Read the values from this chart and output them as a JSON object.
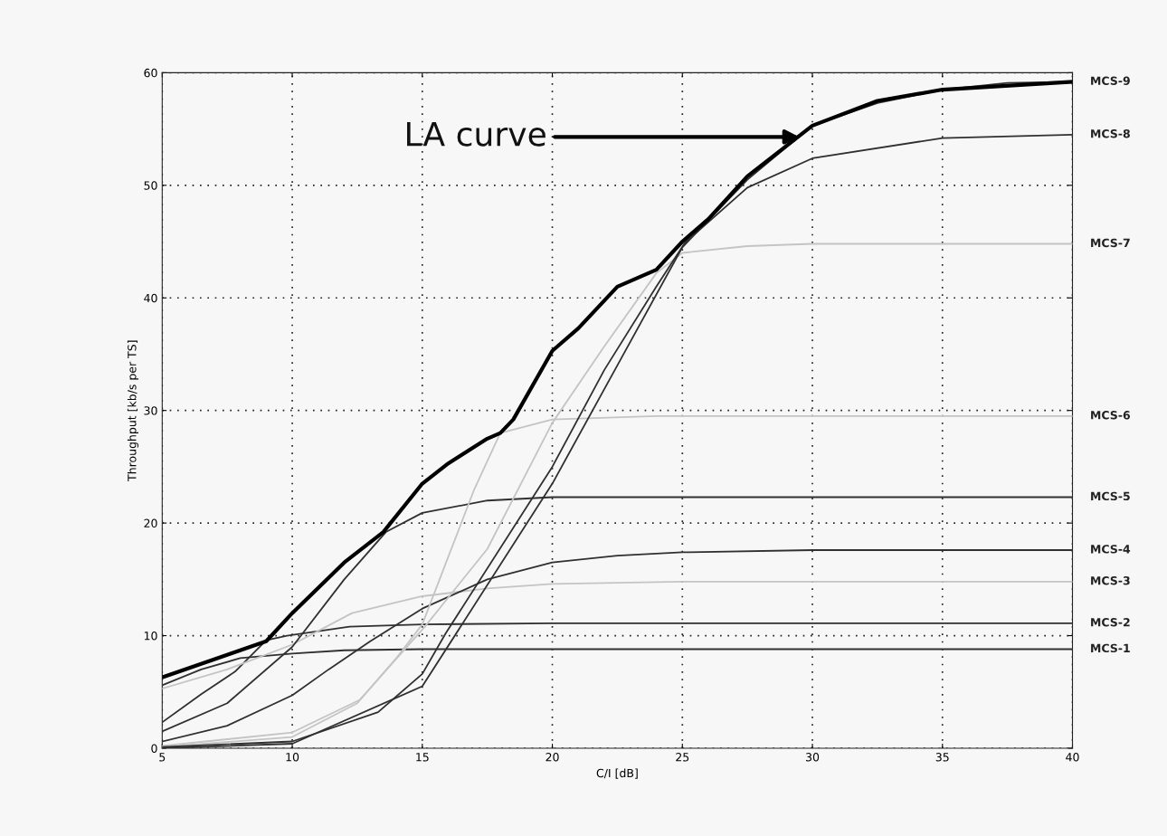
{
  "chart_data": {
    "type": "line",
    "xlabel": "C/I [dB]",
    "ylabel": "Throughput [kb/s per TS]",
    "xlim": [
      5,
      40
    ],
    "xticks": [
      5,
      10,
      15,
      20,
      25,
      30,
      35,
      40
    ],
    "ylim": [
      0,
      60
    ],
    "yticks": [
      0,
      10,
      20,
      30,
      40,
      50,
      60
    ],
    "grid": true,
    "line_style": "solid",
    "marker": "none",
    "series": [
      {
        "name": "MCS-1",
        "color": "#303030",
        "x": [
          5,
          6.5,
          8,
          10,
          12,
          15,
          20,
          40
        ],
        "values": [
          5.6,
          7.0,
          8.0,
          8.4,
          8.7,
          8.8,
          8.8,
          8.8
        ]
      },
      {
        "name": "MCS-2",
        "color": "#303030",
        "x": [
          5,
          6.5,
          7.8,
          9,
          9.8,
          12.2,
          15,
          20,
          40
        ],
        "values": [
          2.3,
          4.8,
          6.8,
          9.6,
          10.0,
          10.8,
          11.0,
          11.1,
          11.1
        ]
      },
      {
        "name": "MCS-3",
        "color": "#c4c4c4",
        "x": [
          5,
          7.5,
          10,
          12.3,
          15,
          17.5,
          20,
          25,
          40
        ],
        "values": [
          5.3,
          7.0,
          9.2,
          12.0,
          13.5,
          14.2,
          14.6,
          14.8,
          14.8
        ]
      },
      {
        "name": "MCS-4",
        "color": "#303030",
        "x": [
          5,
          7.5,
          10,
          11.4,
          13,
          15,
          17.5,
          20,
          22.5,
          25,
          30,
          40
        ],
        "values": [
          0.6,
          2.0,
          4.7,
          7.0,
          9.5,
          12.4,
          15.0,
          16.5,
          17.1,
          17.4,
          17.6,
          17.6
        ]
      },
      {
        "name": "MCS-5",
        "color": "#303030",
        "x": [
          5,
          7.5,
          10,
          12,
          13.6,
          15,
          17.5,
          20,
          25,
          40
        ],
        "values": [
          1.5,
          4.0,
          9.0,
          15.0,
          19.2,
          20.9,
          22.0,
          22.3,
          22.3,
          22.3
        ]
      },
      {
        "name": "MCS-6",
        "color": "#c4c4c4",
        "x": [
          5,
          10,
          12.5,
          14,
          15,
          16,
          17,
          18,
          20,
          24,
          40
        ],
        "values": [
          0.1,
          1.0,
          4.0,
          8.0,
          11.0,
          17.0,
          23.0,
          28.0,
          29.2,
          29.5,
          29.5
        ]
      },
      {
        "name": "MCS-7",
        "color": "#c4c4c4",
        "x": [
          5,
          10,
          12.6,
          15.1,
          17.5,
          20,
          22,
          24,
          25,
          27.5,
          30,
          40
        ],
        "values": [
          0.2,
          1.4,
          4.3,
          10.8,
          17.7,
          28.9,
          35.7,
          42.2,
          44.0,
          44.6,
          44.8,
          44.8
        ]
      },
      {
        "name": "MCS-8",
        "color": "#303030",
        "x": [
          5,
          10,
          13.3,
          15,
          15.9,
          20,
          22,
          24,
          25.1,
          27.5,
          30,
          35,
          40
        ],
        "values": [
          0.1,
          0.6,
          3.2,
          6.6,
          10.2,
          25.0,
          33.6,
          41.0,
          44.9,
          49.8,
          52.4,
          54.2,
          54.5
        ]
      },
      {
        "name": "MCS-9",
        "color": "#303030",
        "x": [
          5,
          10,
          15,
          20,
          22.5,
          25,
          27.5,
          30,
          32.5,
          35,
          37.5,
          40
        ],
        "values": [
          0.0,
          0.4,
          5.5,
          23.5,
          34.0,
          44.5,
          50.5,
          55.3,
          57.3,
          58.5,
          59.1,
          59.2
        ]
      },
      {
        "color": "#000000",
        "x": [
          5,
          7.5,
          9,
          10,
          12,
          13.5,
          15,
          16,
          17.5,
          18,
          18.5,
          20,
          21,
          22.5,
          24,
          25,
          26,
          27.5,
          30,
          32.5,
          35,
          40
        ],
        "values": [
          6.3,
          8.3,
          9.5,
          12.0,
          16.5,
          19.2,
          23.5,
          25.3,
          27.5,
          28.0,
          29.2,
          35.3,
          37.3,
          41.0,
          42.5,
          45.0,
          47.0,
          50.8,
          55.3,
          57.5,
          58.5,
          59.2
        ]
      }
    ],
    "annotations": [
      {
        "text": "LA curve",
        "x": 29.5,
        "y": 54.3
      }
    ]
  }
}
